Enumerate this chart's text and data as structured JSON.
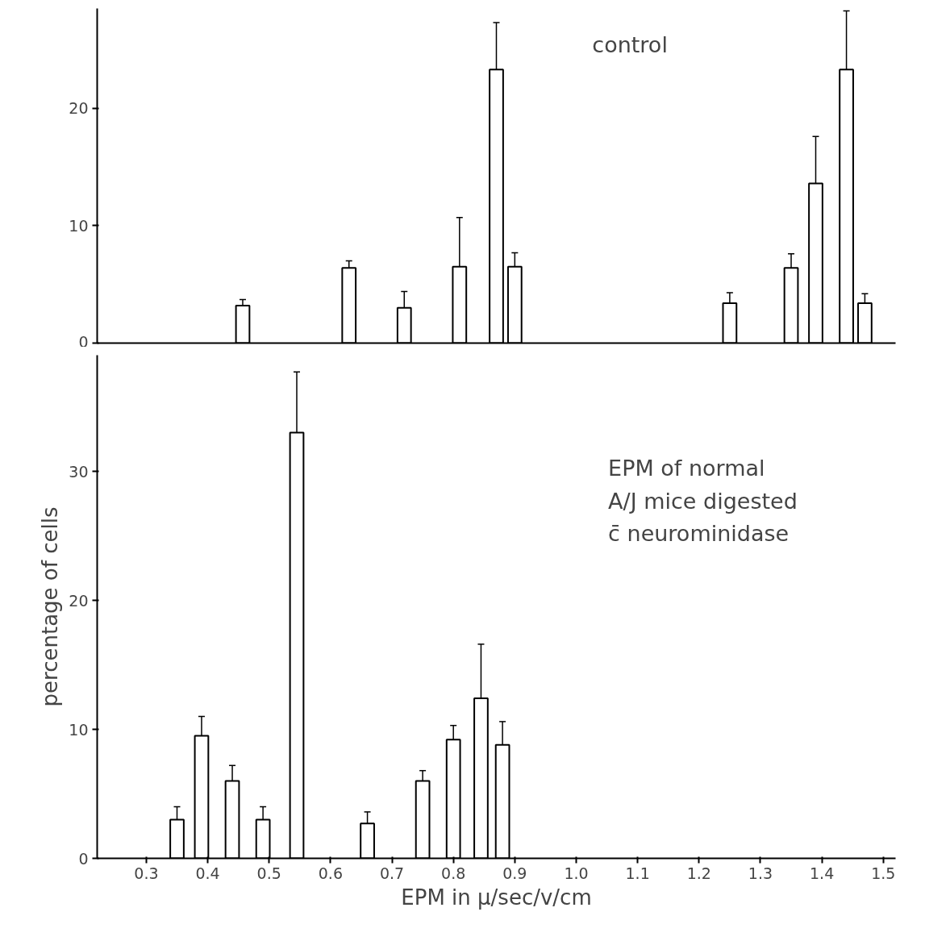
{
  "chart_data": [
    {
      "type": "bar",
      "x": [
        0.457,
        0.63,
        0.72,
        0.81,
        0.87,
        0.9,
        1.25,
        1.35,
        1.39,
        1.44,
        1.47
      ],
      "values": [
        3.2,
        6.4,
        3.0,
        6.5,
        23.3,
        6.5,
        3.4,
        6.4,
        13.6,
        23.3,
        3.4
      ],
      "errors": [
        0.5,
        0.6,
        1.4,
        4.2,
        4.0,
        1.2,
        0.9,
        1.2,
        4.0,
        5.0,
        0.8
      ],
      "color": "#ffffff",
      "xlim": [
        0.22,
        1.52
      ],
      "ylim": [
        0,
        28.5
      ],
      "yticks": [
        0,
        10,
        20
      ],
      "tick_labels": "y",
      "annotations": [
        "control"
      ]
    },
    {
      "type": "bar",
      "x": [
        0.35,
        0.39,
        0.44,
        0.49,
        0.545,
        0.66,
        0.75,
        0.8,
        0.845,
        0.88
      ],
      "values": [
        3.0,
        9.5,
        6.0,
        3.0,
        33.0,
        2.7,
        6.0,
        9.2,
        12.4,
        8.8
      ],
      "errors": [
        1.0,
        1.5,
        1.2,
        1.0,
        4.7,
        0.9,
        0.8,
        1.1,
        4.2,
        1.8
      ],
      "color": "#ffffff",
      "xlim": [
        0.22,
        1.52
      ],
      "ylim": [
        0,
        39
      ],
      "yticks": [
        0,
        10,
        20,
        30
      ],
      "xticks": [
        {
          "value": 0.3,
          "label": "0.3"
        },
        {
          "value": 0.4,
          "label": "0.4"
        },
        {
          "value": 0.5,
          "label": "0.5"
        },
        {
          "value": 0.6,
          "label": "0.6"
        },
        {
          "value": 0.7,
          "label": "0.7"
        },
        {
          "value": 0.8,
          "label": "0.8"
        },
        {
          "value": 0.9,
          "label": "0.9"
        },
        {
          "value": 1.0,
          "label": "1.0"
        },
        {
          "value": 1.1,
          "label": "1.1"
        },
        {
          "value": 1.2,
          "label": "1.2"
        },
        {
          "value": 1.3,
          "label": "1.3"
        },
        {
          "value": 1.4,
          "label": "1.4"
        },
        {
          "value": 1.5,
          "label": "1.5"
        }
      ],
      "xlabel": "EPM in µ/sec/v/cm",
      "ylabel": "percentage of cells",
      "annotations": [
        "EPM of normal\nA/J  mice digested\nc̄  neurominidase"
      ]
    }
  ]
}
